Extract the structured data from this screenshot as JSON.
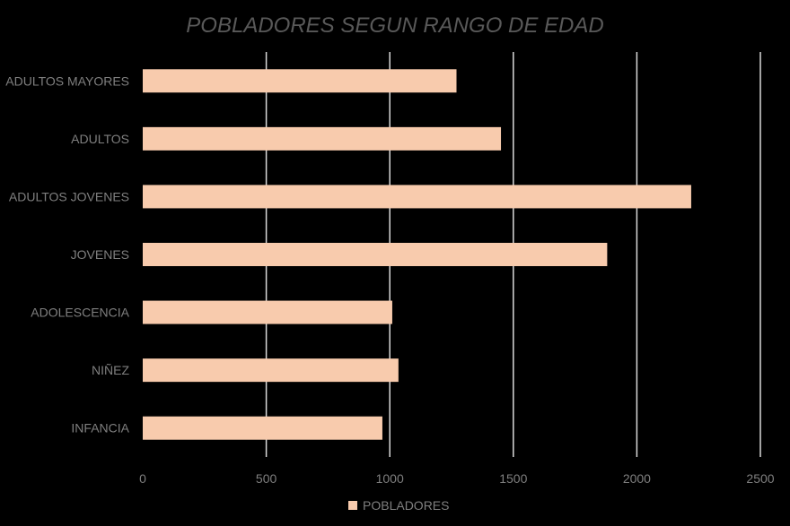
{
  "chart_data": {
    "type": "bar",
    "orientation": "horizontal",
    "title": "POBLADORES SEGUN RANGO DE EDAD",
    "categories": [
      "ADULTOS MAYORES",
      "ADULTOS",
      "ADULTOS JOVENES",
      "JOVENES",
      "ADOLESCENCIA",
      "NIÑEZ",
      "INFANCIA"
    ],
    "series": [
      {
        "name": "POBLADORES",
        "values": [
          1270,
          1450,
          2220,
          1880,
          1010,
          1035,
          970
        ]
      }
    ],
    "xlim": [
      0,
      2500
    ],
    "xticks": [
      0,
      500,
      1000,
      1500,
      2000,
      2500
    ],
    "grid": true,
    "legend_position": "bottom",
    "colors": {
      "bar": "#f8cbad",
      "grid": "#d9d9d9",
      "text": "#7f7f7f",
      "title": "#595959",
      "background": "#000000"
    }
  }
}
